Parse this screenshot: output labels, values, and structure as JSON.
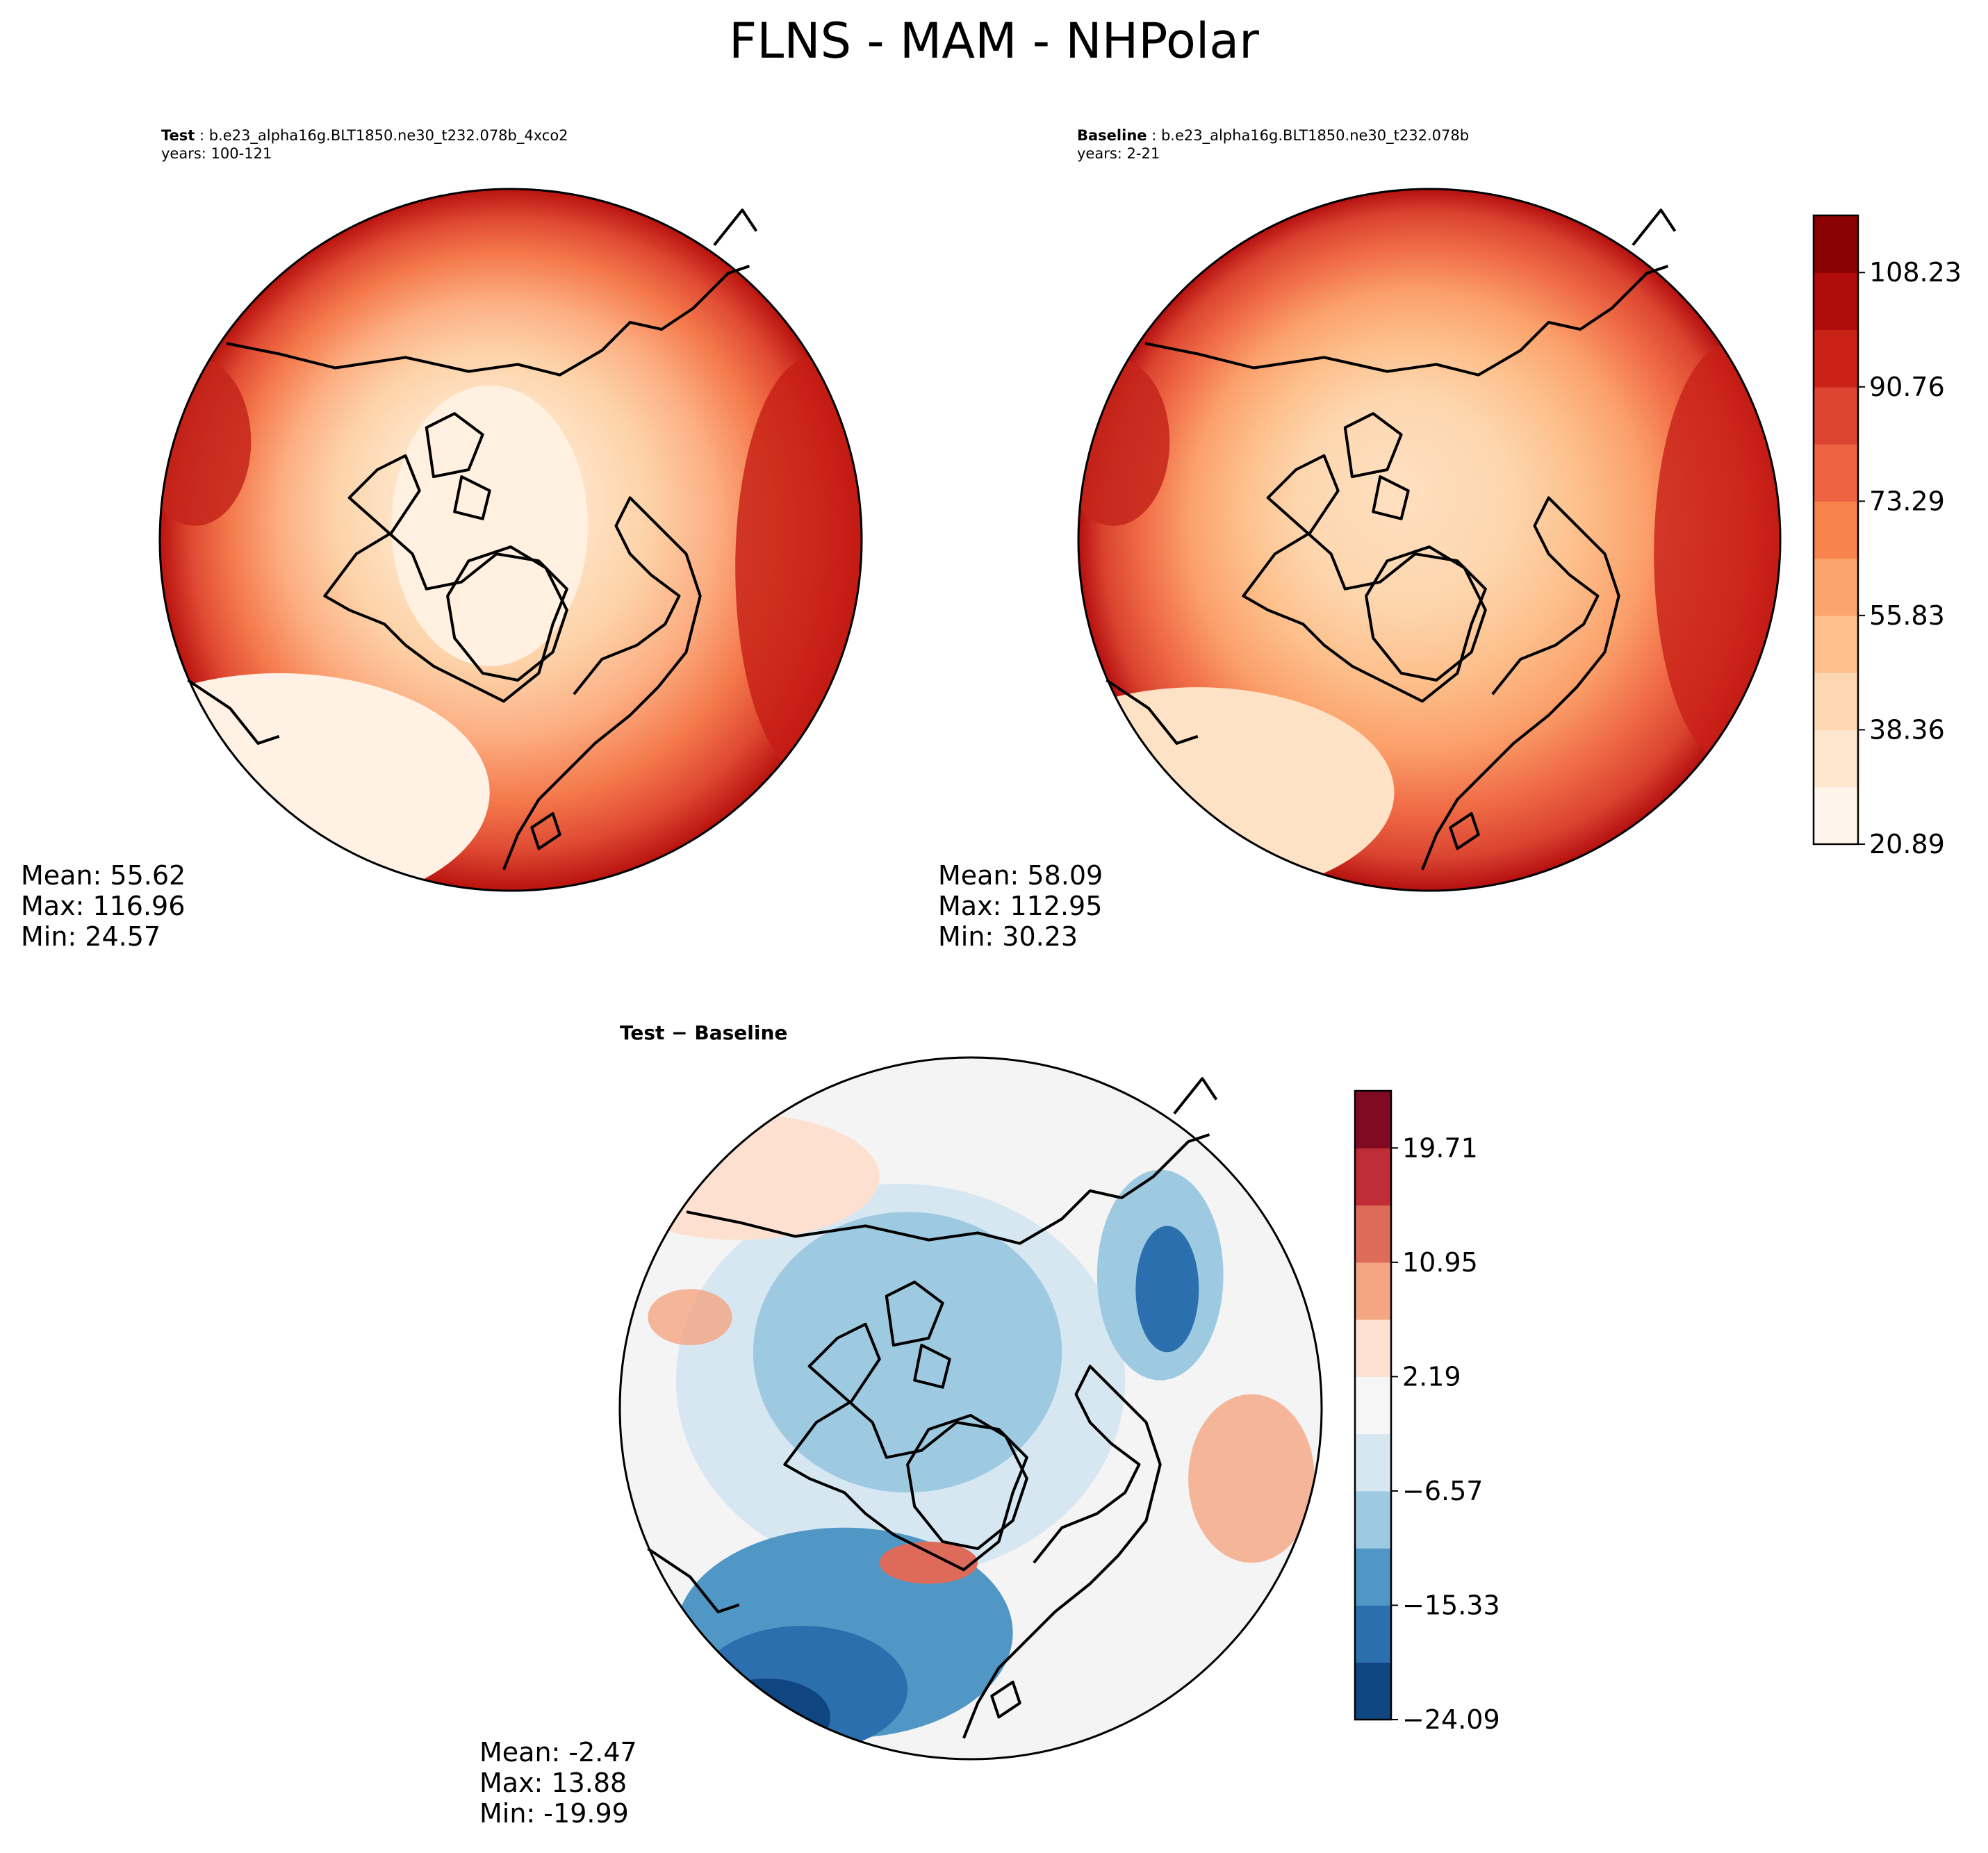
{
  "page": {
    "title": "FLNS - MAM - NHPolar"
  },
  "panels": {
    "test": {
      "case_label": "Test",
      "case_sep": " : ",
      "case_name": "b.e23_alpha16g.BLT1850.ne30_t232.078b_4xco2",
      "years": "years: 100-121",
      "stats": {
        "mean": "Mean: 55.62",
        "max": "Max: 116.96",
        "min": "Min: 24.57"
      }
    },
    "baseline": {
      "case_label": "Baseline",
      "case_sep": " : ",
      "case_name": "b.e23_alpha16g.BLT1850.ne30_t232.078b",
      "years": "years: 2-21",
      "stats": {
        "mean": "Mean: 58.09",
        "max": "Max: 112.95",
        "min": "Min: 30.23"
      }
    },
    "diff": {
      "title": "Test − Baseline",
      "stats": {
        "mean": "Mean: -2.47",
        "max": "Max: 13.88",
        "min": "Min: -19.99"
      }
    }
  },
  "chart_data": [
    {
      "type": "heatmap",
      "title": "Test : b.e23_alpha16g.BLT1850.ne30_t232.078b_4xco2",
      "projection": "north polar stereographic",
      "colormap": "Reds",
      "mean": 55.62,
      "max": 116.96,
      "min": 24.57
    },
    {
      "type": "heatmap",
      "title": "Baseline : b.e23_alpha16g.BLT1850.ne30_t232.078b",
      "projection": "north polar stereographic",
      "colormap": "Reds",
      "mean": 58.09,
      "max": 112.95,
      "min": 30.23
    },
    {
      "type": "heatmap",
      "title": "Test − Baseline",
      "projection": "north polar stereographic",
      "colormap": "RdBu_r",
      "mean": -2.47,
      "max": 13.88,
      "min": -19.99
    }
  ],
  "colorbars": {
    "main": {
      "range": [
        20.89,
        116.96
      ],
      "ticks": [
        20.89,
        38.36,
        55.83,
        73.29,
        90.76,
        108.23
      ],
      "tick_labels": [
        "20.89",
        "38.36",
        "55.83",
        "73.29",
        "90.76",
        "108.23"
      ],
      "colors": [
        "#fff5eb",
        "#fee6ce",
        "#fdd7b2",
        "#fdc08c",
        "#fca46c",
        "#f8834d",
        "#ee6341",
        "#dd4331",
        "#c92216",
        "#b10c0c",
        "#8b0000"
      ]
    },
    "diff": {
      "range": [
        -24.09,
        24.09
      ],
      "ticks": [
        -24.09,
        -15.33,
        -6.57,
        2.19,
        10.95,
        19.71
      ],
      "tick_labels": [
        "−24.09",
        "−15.33",
        "−6.57",
        "2.19",
        "10.95",
        "19.71"
      ],
      "colors": [
        "#0f4580",
        "#2b6fae",
        "#5197c6",
        "#9ecae1",
        "#d6e7f2",
        "#f6f6f6",
        "#fde0d0",
        "#f4a582",
        "#de6b59",
        "#bf2d37",
        "#7f0a22"
      ]
    }
  },
  "map_colors": {
    "outline": "#000000",
    "coast": "#000000"
  }
}
